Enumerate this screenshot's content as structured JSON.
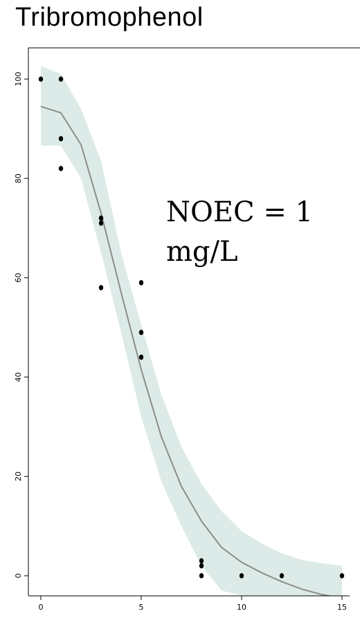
{
  "chart_data": {
    "type": "scatter",
    "title": "Tribromophenol",
    "xlabel": "",
    "ylabel": "",
    "xlim": [
      -0.6,
      15.4
    ],
    "ylim": [
      -4,
      104
    ],
    "x_ticks": [
      0,
      5,
      10,
      15
    ],
    "y_ticks": [
      0,
      20,
      40,
      60,
      80,
      100
    ],
    "grid": false,
    "annotation": [
      "NOEC = 1",
      "mg/L"
    ],
    "points": [
      {
        "x": 0,
        "y": 100
      },
      {
        "x": 1,
        "y": 100
      },
      {
        "x": 1,
        "y": 88
      },
      {
        "x": 1,
        "y": 82
      },
      {
        "x": 3,
        "y": 72
      },
      {
        "x": 3,
        "y": 71
      },
      {
        "x": 3,
        "y": 58
      },
      {
        "x": 5,
        "y": 59
      },
      {
        "x": 5,
        "y": 49
      },
      {
        "x": 5,
        "y": 44
      },
      {
        "x": 8,
        "y": 3
      },
      {
        "x": 8,
        "y": 2
      },
      {
        "x": 8,
        "y": 0
      },
      {
        "x": 10,
        "y": 0
      },
      {
        "x": 12,
        "y": 0
      },
      {
        "x": 15,
        "y": 0
      }
    ],
    "fit": {
      "x": [
        0,
        1,
        2,
        3,
        4,
        5,
        6,
        7,
        8,
        9,
        10,
        11,
        12,
        13,
        14,
        15
      ],
      "y": [
        94.5,
        93.2,
        86.8,
        73,
        57,
        41.5,
        28,
        18,
        11,
        5.7,
        2.7,
        0.6,
        -1.2,
        -2.7,
        -3.8,
        -4.5
      ],
      "lower": [
        86.6,
        86.6,
        80,
        65,
        49,
        32,
        19,
        10,
        2,
        -3,
        -4,
        -4,
        -4,
        -4,
        -4,
        -4
      ],
      "upper": [
        102.6,
        101,
        94,
        83.5,
        65,
        50.5,
        36.5,
        26,
        18.5,
        13,
        9,
        6.5,
        4.5,
        3.2,
        2.5,
        2
      ],
      "line_color": "#8c8c8c",
      "band_color": "#dcebe8"
    },
    "point_color": "#000000",
    "axis_color": "#000000"
  }
}
